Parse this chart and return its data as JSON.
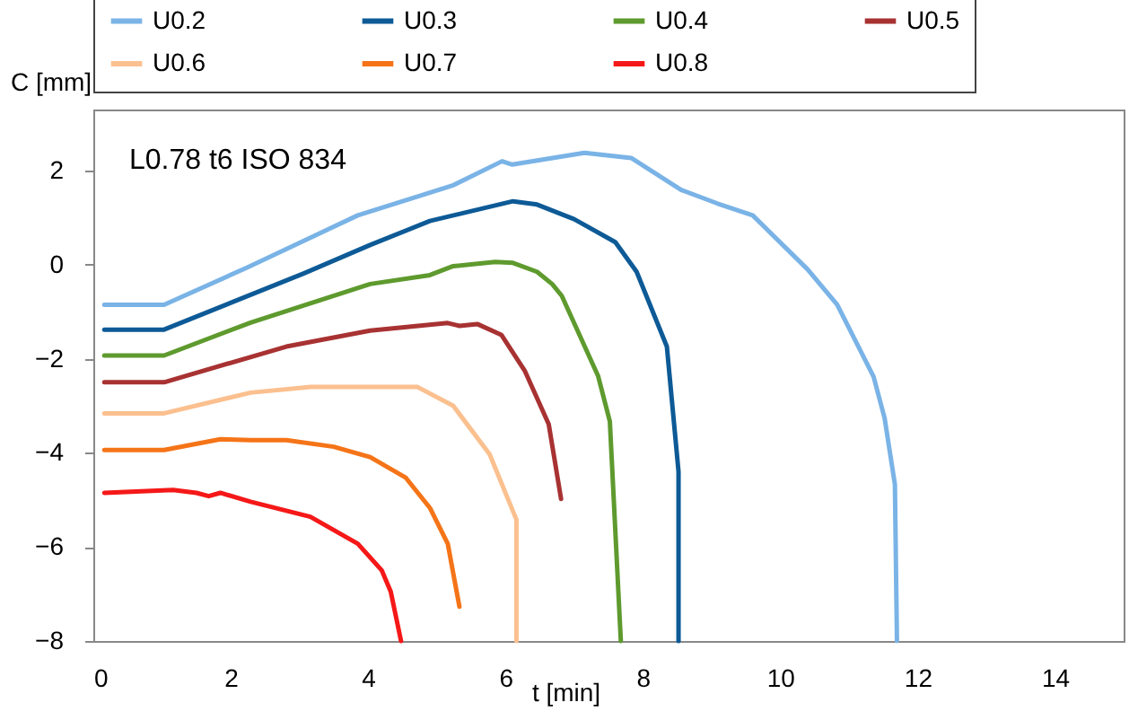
{
  "chart_data": {
    "type": "line",
    "xlabel": "t [min]",
    "ylabel": "C [mm]",
    "annotations": [
      "L0.78 t6  ISO 834"
    ],
    "xlim": [
      0,
      15
    ],
    "xticks": [
      0,
      2,
      4,
      6,
      8,
      10,
      12,
      14
    ],
    "ylim": [
      -8,
      3.3
    ],
    "yticks": [
      -8,
      -6,
      -4,
      -2,
      0,
      2
    ],
    "grid": false,
    "legend": "top",
    "line_style": "solid",
    "marker": "none",
    "series": [
      {
        "name": "U0.2",
        "color": "#7ab3e6",
        "x": [
          0.16,
          1.03,
          2.24,
          3.85,
          5.24,
          5.95,
          6.1,
          7.15,
          7.83,
          8.56,
          9.09,
          9.6,
          10.4,
          10.83,
          11.36,
          11.52,
          11.67,
          11.7
        ],
        "values": [
          -0.85,
          -0.85,
          -0.06,
          1.05,
          1.69,
          2.2,
          2.13,
          2.38,
          2.27,
          1.59,
          1.3,
          1.05,
          -0.1,
          -0.85,
          -2.38,
          -3.26,
          -4.67,
          -8
        ]
      },
      {
        "name": "U0.3",
        "color": "#0d5a96",
        "x": [
          0.16,
          1.03,
          3.07,
          4.03,
          4.9,
          6.11,
          6.46,
          7.0,
          7.6,
          7.91,
          8.35,
          8.52,
          8.52
        ],
        "values": [
          -1.38,
          -1.38,
          -0.18,
          0.42,
          0.93,
          1.35,
          1.28,
          0.97,
          0.48,
          -0.15,
          -1.74,
          -4.4,
          -8
        ]
      },
      {
        "name": "U0.4",
        "color": "#5e9a2e",
        "x": [
          0.16,
          1.03,
          2.29,
          4.03,
          4.9,
          5.24,
          5.85,
          6.11,
          6.46,
          6.68,
          6.82,
          7.35,
          7.52,
          7.68
        ],
        "values": [
          -1.93,
          -1.93,
          -1.23,
          -0.41,
          -0.22,
          -0.03,
          0.06,
          0.04,
          -0.15,
          -0.41,
          -0.66,
          -2.37,
          -3.33,
          -8
        ]
      },
      {
        "name": "U0.5",
        "color": "#a83232",
        "x": [
          0.16,
          1.03,
          2.81,
          4.03,
          5.16,
          5.33,
          5.59,
          5.94,
          6.28,
          6.63,
          6.81
        ],
        "values": [
          -2.5,
          -2.5,
          -1.74,
          -1.4,
          -1.24,
          -1.3,
          -1.26,
          -1.49,
          -2.25,
          -3.39,
          -4.98
        ]
      },
      {
        "name": "U0.6",
        "color": "#fbc08f",
        "x": [
          0.16,
          1.03,
          2.29,
          3.16,
          4.72,
          5.24,
          5.77,
          6.16,
          6.16
        ],
        "values": [
          -3.16,
          -3.16,
          -2.72,
          -2.6,
          -2.6,
          -3.0,
          -4.03,
          -5.42,
          -8
        ]
      },
      {
        "name": "U0.7",
        "color": "#f57418",
        "x": [
          0.16,
          1.03,
          1.85,
          2.29,
          2.81,
          3.5,
          4.03,
          4.55,
          4.9,
          5.16,
          5.33
        ],
        "values": [
          -3.94,
          -3.94,
          -3.71,
          -3.73,
          -3.73,
          -3.87,
          -4.09,
          -4.53,
          -5.17,
          -5.93,
          -7.27
        ]
      },
      {
        "name": "U0.8",
        "color": "#f51818",
        "x": [
          0.16,
          1.16,
          1.5,
          1.68,
          1.85,
          2.29,
          3.16,
          3.85,
          4.2,
          4.33,
          4.48
        ],
        "values": [
          -4.85,
          -4.79,
          -4.85,
          -4.92,
          -4.85,
          -5.04,
          -5.36,
          -5.93,
          -6.5,
          -6.95,
          -8
        ]
      }
    ]
  }
}
